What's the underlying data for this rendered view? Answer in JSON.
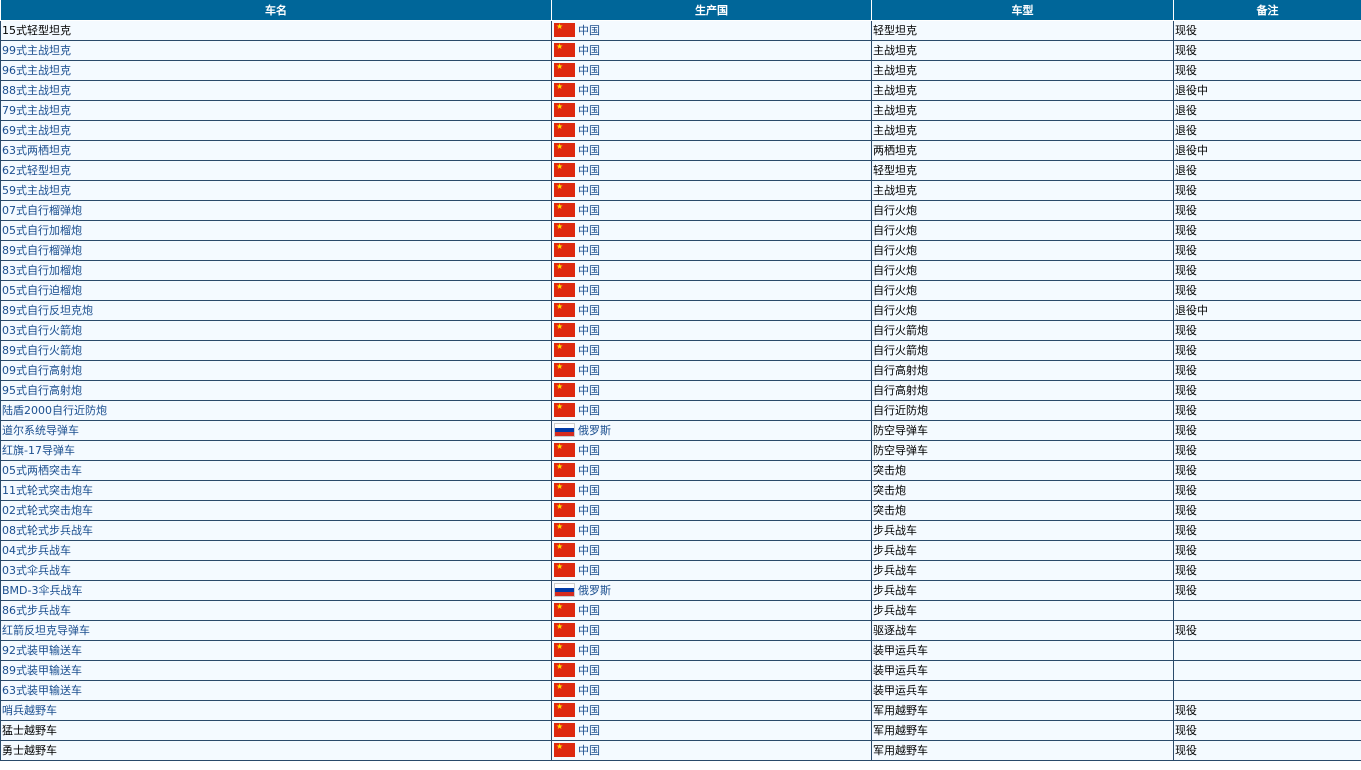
{
  "headers": [
    "车名",
    "生产国",
    "车型",
    "备注"
  ],
  "rows": [
    {
      "name": "15式轻型坦克",
      "country": "中国",
      "flag": "cn",
      "type": "轻型坦克",
      "note": "现役"
    },
    {
      "name": "99式主战坦克",
      "country": "中国",
      "flag": "cn",
      "type": "主战坦克",
      "note": "现役"
    },
    {
      "name": "96式主战坦克",
      "country": "中国",
      "flag": "cn",
      "type": "主战坦克",
      "note": "现役"
    },
    {
      "name": "88式主战坦克",
      "country": "中国",
      "flag": "cn",
      "type": "主战坦克",
      "note": "退役中"
    },
    {
      "name": "79式主战坦克",
      "country": "中国",
      "flag": "cn",
      "type": "主战坦克",
      "note": "退役"
    },
    {
      "name": "69式主战坦克",
      "country": "中国",
      "flag": "cn",
      "type": "主战坦克",
      "note": "退役"
    },
    {
      "name": "63式两栖坦克",
      "country": "中国",
      "flag": "cn",
      "type": "两栖坦克",
      "note": "退役中"
    },
    {
      "name": "62式轻型坦克",
      "country": "中国",
      "flag": "cn",
      "type": "轻型坦克",
      "note": "退役"
    },
    {
      "name": "59式主战坦克",
      "country": "中国",
      "flag": "cn",
      "type": "主战坦克",
      "note": "现役"
    },
    {
      "name": "07式自行榴弹炮",
      "country": "中国",
      "flag": "cn",
      "type": "自行火炮",
      "note": "现役"
    },
    {
      "name": "05式自行加榴炮",
      "country": "中国",
      "flag": "cn",
      "type": "自行火炮",
      "note": "现役"
    },
    {
      "name": "89式自行榴弹炮",
      "country": "中国",
      "flag": "cn",
      "type": "自行火炮",
      "note": "现役"
    },
    {
      "name": "83式自行加榴炮",
      "country": "中国",
      "flag": "cn",
      "type": "自行火炮",
      "note": "现役"
    },
    {
      "name": "05式自行迫榴炮",
      "country": "中国",
      "flag": "cn",
      "type": "自行火炮",
      "note": "现役"
    },
    {
      "name": "89式自行反坦克炮",
      "country": "中国",
      "flag": "cn",
      "type": "自行火炮",
      "note": "退役中"
    },
    {
      "name": "03式自行火箭炮",
      "country": "中国",
      "flag": "cn",
      "type": "自行火箭炮",
      "note": "现役"
    },
    {
      "name": "89式自行火箭炮",
      "country": "中国",
      "flag": "cn",
      "type": "自行火箭炮",
      "note": "现役"
    },
    {
      "name": "09式自行高射炮",
      "country": "中国",
      "flag": "cn",
      "type": "自行高射炮",
      "note": "现役"
    },
    {
      "name": "95式自行高射炮",
      "country": "中国",
      "flag": "cn",
      "type": "自行高射炮",
      "note": "现役"
    },
    {
      "name": "陆盾2000自行近防炮",
      "country": "中国",
      "flag": "cn",
      "type": "自行近防炮",
      "note": "现役"
    },
    {
      "name": "道尔系统导弹车",
      "country": "俄罗斯",
      "flag": "ru",
      "type": "防空导弹车",
      "note": "现役"
    },
    {
      "name": "红旗-17导弹车",
      "country": "中国",
      "flag": "cn",
      "type": "防空导弹车",
      "note": "现役"
    },
    {
      "name": "05式两栖突击车",
      "country": "中国",
      "flag": "cn",
      "type": "突击炮",
      "note": "现役"
    },
    {
      "name": "11式轮式突击炮车",
      "country": "中国",
      "flag": "cn",
      "type": "突击炮",
      "note": "现役"
    },
    {
      "name": "02式轮式突击炮车",
      "country": "中国",
      "flag": "cn",
      "type": "突击炮",
      "note": "现役"
    },
    {
      "name": "08式轮式步兵战车",
      "country": "中国",
      "flag": "cn",
      "type": "步兵战车",
      "note": "现役"
    },
    {
      "name": "04式步兵战车",
      "country": "中国",
      "flag": "cn",
      "type": "步兵战车",
      "note": "现役"
    },
    {
      "name": "03式伞兵战车",
      "country": "中国",
      "flag": "cn",
      "type": "步兵战车",
      "note": "现役"
    },
    {
      "name": "BMD-3伞兵战车",
      "country": "俄罗斯",
      "flag": "ru",
      "type": "步兵战车",
      "note": "现役"
    },
    {
      "name": "86式步兵战车",
      "country": "中国",
      "flag": "cn",
      "type": "步兵战车",
      "note": ""
    },
    {
      "name": "红箭反坦克导弹车",
      "country": "中国",
      "flag": "cn",
      "type": "驱逐战车",
      "note": "现役"
    },
    {
      "name": "92式装甲输送车",
      "country": "中国",
      "flag": "cn",
      "type": "装甲运兵车",
      "note": ""
    },
    {
      "name": "89式装甲输送车",
      "country": "中国",
      "flag": "cn",
      "type": "装甲运兵车",
      "note": ""
    },
    {
      "name": "63式装甲输送车",
      "country": "中国",
      "flag": "cn",
      "type": "装甲运兵车",
      "note": ""
    },
    {
      "name": "哨兵越野车",
      "country": "中国",
      "flag": "cn",
      "type": "军用越野车",
      "note": "现役"
    },
    {
      "name": "猛士越野车",
      "country": "中国",
      "flag": "cn",
      "type": "军用越野车",
      "note": "现役"
    },
    {
      "name": "勇士越野车",
      "country": "中国",
      "flag": "cn",
      "type": "军用越野车",
      "note": "现役"
    }
  ],
  "dark_name_rows": [
    0,
    35,
    36
  ]
}
